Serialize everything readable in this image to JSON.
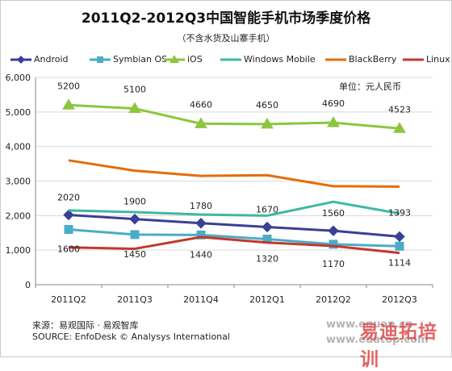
{
  "title": "2011Q2-2012Q3中国智能手机市场季度价格",
  "subtitle": "（不含水货及山寨手机）",
  "unit_label": "单位：元人民币",
  "source_cn": "来源：易观国际 · 易观智库",
  "source_en": "SOURCE: EnfoDesk © Analysys International",
  "watermark_1": "www.eguan.cn",
  "watermark_2": "www.edatop.com",
  "logo_text": "易迪拓培训",
  "chart_data": {
    "type": "line",
    "title": "2011Q2-2012Q3中国智能手机市场季度价格",
    "subtitle": "（不含水货及山寨手机）",
    "x": [
      "2011Q2",
      "2011Q3",
      "2011Q4",
      "2012Q1",
      "2012Q2",
      "2012Q3"
    ],
    "ylim": [
      0,
      6000
    ],
    "yticks": [
      0,
      1000,
      2000,
      3000,
      4000,
      5000,
      6000
    ],
    "ytick_labels": [
      "0",
      "1,000",
      "2,000",
      "3,000",
      "4,000",
      "5,000",
      "6,000"
    ],
    "grid": true,
    "legend_position": "top",
    "series": [
      {
        "name": "Android",
        "color": "#3a3f97",
        "marker": "diamond",
        "values": [
          2020,
          1900,
          1780,
          1670,
          1560,
          1393
        ],
        "labels": [
          "2020",
          "1900",
          "1780",
          "1670",
          "1560",
          "1393"
        ]
      },
      {
        "name": "Symbian OS",
        "color": "#4bacc6",
        "marker": "square",
        "values": [
          1600,
          1450,
          1440,
          1320,
          1170,
          1114
        ],
        "labels": [
          "1600",
          "1450",
          "1440",
          "1320",
          "1170",
          "1114"
        ]
      },
      {
        "name": "iOS",
        "color": "#8cc63f",
        "marker": "triangle",
        "values": [
          5200,
          5100,
          4660,
          4650,
          4690,
          4523
        ],
        "labels": [
          "5200",
          "5100",
          "4660",
          "4650",
          "4690",
          "4523"
        ]
      },
      {
        "name": "Windows Mobile",
        "color": "#3fb8a0",
        "marker": "none",
        "values": [
          2150,
          2100,
          2030,
          2000,
          2400,
          2060
        ],
        "labels": []
      },
      {
        "name": "BlackBerry",
        "color": "#e46c0a",
        "marker": "none",
        "values": [
          3600,
          3300,
          3150,
          3170,
          2850,
          2840
        ],
        "labels": []
      },
      {
        "name": "Linux",
        "color": "#c0392b",
        "marker": "none",
        "values": [
          1080,
          1040,
          1380,
          1220,
          1120,
          920
        ],
        "labels": []
      }
    ]
  }
}
